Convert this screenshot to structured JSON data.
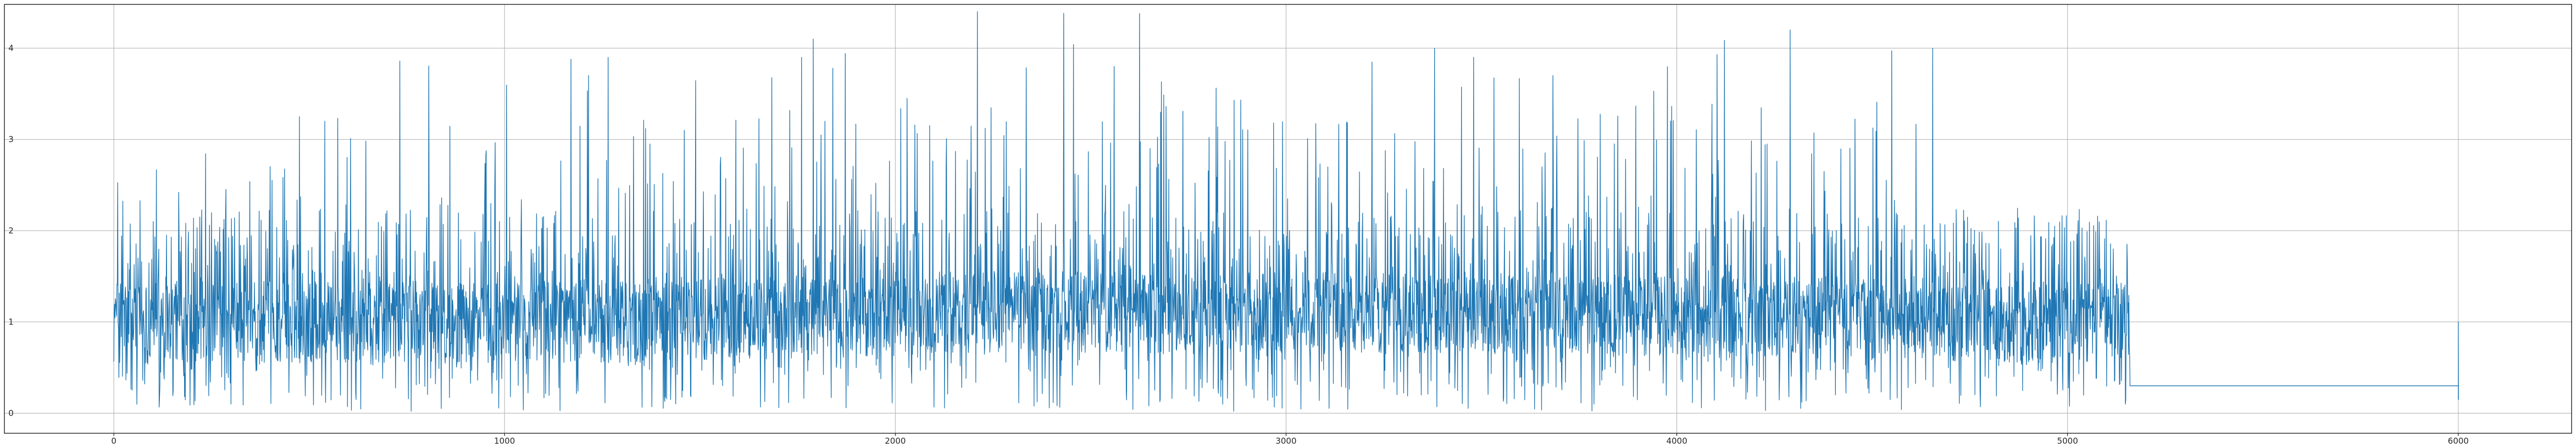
{
  "chart_data": {
    "type": "line",
    "title": "",
    "xlabel": "",
    "ylabel": "",
    "xlim": [
      -280,
      6290
    ],
    "ylim": [
      -0.22,
      4.48
    ],
    "xticks": [
      0,
      1000,
      2000,
      3000,
      4000,
      5000,
      6000
    ],
    "xtick_labels": [
      "0",
      "1000",
      "2000",
      "3000",
      "4000",
      "5000",
      "6000"
    ],
    "yticks": [
      0,
      1,
      2,
      3,
      4
    ],
    "ytick_labels": [
      "0",
      "1",
      "2",
      "3",
      "4"
    ],
    "grid": true,
    "legend": "none",
    "series": [
      {
        "color": "#1f77b4",
        "n_points": 6000,
        "description_segments": [
          {
            "x_range": [
              0,
              600
            ],
            "baseline": 1.0,
            "range": [
              0.05,
              3.3
            ],
            "notable_peaks": [
              [
                475,
                3.25
              ],
              [
                540,
                3.2
              ]
            ]
          },
          {
            "x_range": [
              600,
              1350
            ],
            "baseline": 1.0,
            "range": [
              0.02,
              3.9
            ],
            "notable_peaks": [
              [
                1170,
                3.88
              ],
              [
                1265,
                3.9
              ],
              [
                1215,
                3.7
              ]
            ]
          },
          {
            "x_range": [
              1350,
              2100
            ],
            "baseline": 1.05,
            "range": [
              0.05,
              4.1
            ],
            "notable_peaks": [
              [
                1760,
                3.9
              ],
              [
                1790,
                4.1
              ],
              [
                1840,
                3.78
              ],
              [
                2030,
                3.45
              ]
            ]
          },
          {
            "x_range": [
              2100,
              2300
            ],
            "baseline": 1.1,
            "range": [
              0.05,
              4.4
            ],
            "notable_peaks": [
              [
                2210,
                4.42
              ]
            ]
          },
          {
            "x_range": [
              2300,
              3000
            ],
            "baseline": 1.1,
            "range": [
              0.02,
              4.4
            ],
            "notable_peaks": [
              [
                2625,
                4.38
              ],
              [
                2560,
                3.8
              ]
            ]
          },
          {
            "x_range": [
              3000,
              3800
            ],
            "baseline": 1.1,
            "range": [
              0.02,
              4.0
            ],
            "notable_peaks": [
              [
                3380,
                4.0
              ],
              [
                3480,
                3.9
              ]
            ]
          },
          {
            "x_range": [
              3800,
              4700
            ],
            "baseline": 1.05,
            "range": [
              0.02,
              4.2
            ],
            "notable_peaks": [
              [
                4290,
                4.2
              ],
              [
                4655,
                4.0
              ]
            ]
          },
          {
            "x_range": [
              4700,
              5160
            ],
            "baseline": 1.0,
            "range": [
              0.05,
              2.6
            ]
          },
          {
            "x_range": [
              5160,
              6000
            ],
            "baseline": 0.3,
            "range": [
              0.3,
              0.3
            ],
            "flat": true
          },
          {
            "x_range": [
              6000,
              6001
            ],
            "spike_to": 1.0
          }
        ]
      }
    ]
  }
}
